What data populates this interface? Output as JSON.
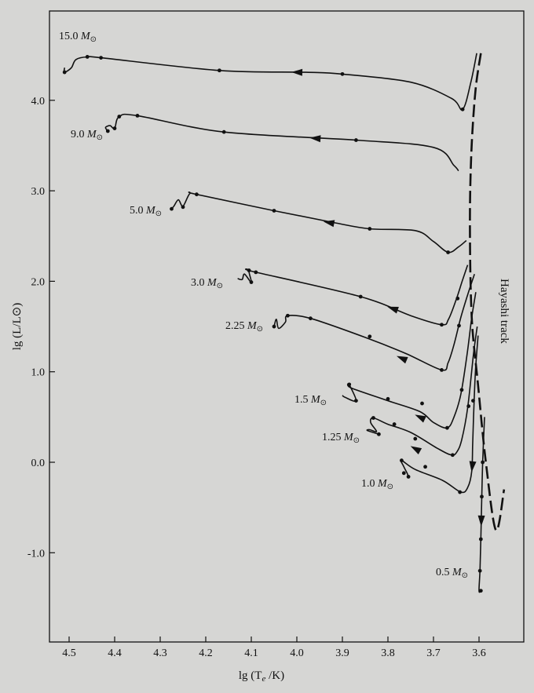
{
  "chart_data": {
    "type": "line",
    "xlabel": "lg (Tₑ /K)",
    "ylabel": "lg (L/L⊙)",
    "xlim": [
      4.55,
      3.52
    ],
    "ylim": [
      -2.0,
      4.75
    ],
    "x_ticks": [
      "4.5",
      "4.4",
      "4.3",
      "4.2",
      "4.1",
      "4.0",
      "3.9",
      "3.8",
      "3.7",
      "3.6"
    ],
    "y_ticks": [
      "4.0",
      "3.0",
      "2.0",
      "1.0",
      "0.0",
      "-1.0"
    ],
    "x_inverted": true,
    "hayashi_label": "Hayashi track",
    "hayashi": [
      [
        3.596,
        4.52
      ],
      [
        3.608,
        4.1
      ],
      [
        3.617,
        3.4
      ],
      [
        3.62,
        2.6
      ],
      [
        3.616,
        1.6
      ],
      [
        3.602,
        0.85
      ],
      [
        3.585,
        0.0
      ],
      [
        3.563,
        -0.75
      ],
      [
        3.545,
        -0.3
      ]
    ],
    "series": [
      {
        "name": "15.0",
        "points": [
          [
            3.605,
            4.52
          ],
          [
            3.618,
            4.2
          ],
          [
            3.636,
            3.9
          ],
          [
            3.66,
            4.02
          ],
          [
            3.75,
            4.2
          ],
          [
            3.9,
            4.29
          ],
          [
            3.98,
            4.31
          ],
          [
            4.17,
            4.33
          ],
          [
            4.43,
            4.47
          ],
          [
            4.46,
            4.48
          ],
          [
            4.485,
            4.45
          ],
          [
            4.495,
            4.36
          ],
          [
            4.51,
            4.31
          ],
          [
            4.51,
            4.36
          ]
        ],
        "dots": [
          [
            3.636,
            3.9
          ],
          [
            3.9,
            4.29
          ],
          [
            4.17,
            4.33
          ],
          [
            4.43,
            4.47
          ],
          [
            4.46,
            4.48
          ],
          [
            4.51,
            4.31
          ]
        ],
        "arrow": [
          4.0,
          4.31
        ]
      },
      {
        "name": "9.0",
        "points": [
          [
            3.645,
            3.22
          ],
          [
            3.655,
            3.28
          ],
          [
            3.7,
            3.48
          ],
          [
            3.87,
            3.56
          ],
          [
            4.16,
            3.65
          ],
          [
            4.35,
            3.83
          ],
          [
            4.39,
            3.82
          ],
          [
            4.4,
            3.69
          ],
          [
            4.41,
            3.72
          ],
          [
            4.42,
            3.7
          ],
          [
            4.415,
            3.66
          ]
        ],
        "dots": [
          [
            3.87,
            3.56
          ],
          [
            4.16,
            3.65
          ],
          [
            4.35,
            3.83
          ],
          [
            4.39,
            3.82
          ],
          [
            4.4,
            3.69
          ],
          [
            4.415,
            3.66
          ]
        ],
        "arrow": [
          3.96,
          3.58
        ]
      },
      {
        "name": "5.0",
        "points": [
          [
            3.628,
            2.45
          ],
          [
            3.645,
            2.38
          ],
          [
            3.668,
            2.32
          ],
          [
            3.7,
            2.44
          ],
          [
            3.74,
            2.56
          ],
          [
            3.84,
            2.58
          ],
          [
            3.92,
            2.65
          ],
          [
            4.05,
            2.78
          ],
          [
            4.22,
            2.96
          ],
          [
            4.235,
            2.97
          ],
          [
            4.25,
            2.83
          ],
          [
            4.26,
            2.9
          ],
          [
            4.27,
            2.83
          ],
          [
            4.275,
            2.8
          ]
        ],
        "dots": [
          [
            3.668,
            2.32
          ],
          [
            3.84,
            2.58
          ],
          [
            4.05,
            2.78
          ],
          [
            4.22,
            2.96
          ],
          [
            4.25,
            2.82
          ],
          [
            4.275,
            2.8
          ]
        ],
        "arrow": [
          3.93,
          2.65
        ]
      },
      {
        "name": "3.0",
        "points": [
          [
            3.625,
            2.18
          ],
          [
            3.637,
            2.0
          ],
          [
            3.65,
            1.8
          ],
          [
            3.667,
            1.58
          ],
          [
            3.682,
            1.52
          ],
          [
            3.75,
            1.62
          ],
          [
            3.86,
            1.83
          ],
          [
            4.09,
            2.1
          ],
          [
            4.105,
            2.12
          ],
          [
            4.1,
            1.99
          ],
          [
            4.115,
            2.08
          ],
          [
            4.12,
            2.02
          ],
          [
            4.13,
            2.03
          ]
        ],
        "dots": [
          [
            3.647,
            1.81
          ],
          [
            3.682,
            1.52
          ],
          [
            3.86,
            1.83
          ],
          [
            4.09,
            2.1
          ],
          [
            4.105,
            2.12
          ],
          [
            4.1,
            1.99
          ]
        ],
        "arrow": [
          3.79,
          1.7
        ]
      },
      {
        "name": "2.25",
        "points": [
          [
            3.61,
            2.08
          ],
          [
            3.625,
            1.85
          ],
          [
            3.64,
            1.6
          ],
          [
            3.655,
            1.3
          ],
          [
            3.668,
            1.1
          ],
          [
            3.682,
            1.02
          ],
          [
            3.76,
            1.2
          ],
          [
            3.85,
            1.38
          ],
          [
            3.97,
            1.59
          ],
          [
            4.02,
            1.62
          ],
          [
            4.025,
            1.55
          ],
          [
            4.04,
            1.48
          ],
          [
            4.045,
            1.58
          ],
          [
            4.05,
            1.5
          ]
        ],
        "dots": [
          [
            3.644,
            1.51
          ],
          [
            3.682,
            1.02
          ],
          [
            3.84,
            1.39
          ],
          [
            3.97,
            1.59
          ],
          [
            4.02,
            1.62
          ],
          [
            4.05,
            1.5
          ]
        ],
        "arrow": [
          3.77,
          1.15
        ]
      },
      {
        "name": "1.5",
        "points": [
          [
            3.607,
            1.88
          ],
          [
            3.616,
            1.6
          ],
          [
            3.626,
            1.2
          ],
          [
            3.64,
            0.75
          ],
          [
            3.655,
            0.5
          ],
          [
            3.67,
            0.38
          ],
          [
            3.7,
            0.44
          ],
          [
            3.73,
            0.56
          ],
          [
            3.8,
            0.68
          ],
          [
            3.88,
            0.82
          ],
          [
            3.885,
            0.86
          ],
          [
            3.87,
            0.68
          ],
          [
            3.895,
            0.72
          ],
          [
            3.9,
            0.74
          ]
        ],
        "dots": [
          [
            3.638,
            0.8
          ],
          [
            3.67,
            0.38
          ],
          [
            3.725,
            0.65
          ],
          [
            3.8,
            0.7
          ],
          [
            3.885,
            0.86
          ],
          [
            3.87,
            0.68
          ]
        ],
        "arrow": [
          3.73,
          0.5
        ]
      },
      {
        "name": "1.25",
        "points": [
          [
            3.604,
            1.5
          ],
          [
            3.612,
            1.2
          ],
          [
            3.625,
            0.6
          ],
          [
            3.638,
            0.25
          ],
          [
            3.648,
            0.12
          ],
          [
            3.66,
            0.08
          ],
          [
            3.69,
            0.15
          ],
          [
            3.75,
            0.33
          ],
          [
            3.8,
            0.42
          ],
          [
            3.832,
            0.49
          ],
          [
            3.838,
            0.44
          ],
          [
            3.825,
            0.34
          ],
          [
            3.84,
            0.36
          ],
          [
            3.845,
            0.35
          ],
          [
            3.82,
            0.31
          ]
        ],
        "dots": [
          [
            3.623,
            0.62
          ],
          [
            3.658,
            0.08
          ],
          [
            3.74,
            0.26
          ],
          [
            3.786,
            0.42
          ],
          [
            3.832,
            0.49
          ],
          [
            3.82,
            0.31
          ]
        ],
        "arrow": [
          3.74,
          0.15
        ]
      },
      {
        "name": "1.0",
        "points": [
          [
            3.602,
            1.4
          ],
          [
            3.608,
            1.0
          ],
          [
            3.612,
            0.5
          ],
          [
            3.614,
            0.2
          ],
          [
            3.616,
            -0.1
          ],
          [
            3.625,
            -0.28
          ],
          [
            3.64,
            -0.33
          ],
          [
            3.68,
            -0.2
          ],
          [
            3.74,
            -0.08
          ],
          [
            3.77,
            0.02
          ],
          [
            3.765,
            -0.05
          ],
          [
            3.758,
            -0.12
          ],
          [
            3.755,
            -0.16
          ]
        ],
        "dots": [
          [
            3.613,
            0.68
          ],
          [
            3.642,
            -0.33
          ],
          [
            3.718,
            -0.05
          ],
          [
            3.77,
            0.02
          ],
          [
            3.765,
            -0.12
          ],
          [
            3.755,
            -0.16
          ]
        ],
        "arrow": [
          3.615,
          -0.05
        ]
      },
      {
        "name": "0.5",
        "points": [
          [
            3.588,
            0.5
          ],
          [
            3.592,
            0.0
          ],
          [
            3.594,
            -0.38
          ],
          [
            3.596,
            -0.85
          ],
          [
            3.598,
            -1.2
          ],
          [
            3.6,
            -1.42
          ],
          [
            3.596,
            -1.42
          ]
        ],
        "dots": [
          [
            3.592,
            0.0
          ],
          [
            3.594,
            -0.38
          ],
          [
            3.596,
            -0.85
          ],
          [
            3.598,
            -1.2
          ],
          [
            3.596,
            -1.42
          ]
        ],
        "arrow": [
          3.595,
          -0.65
        ]
      }
    ]
  },
  "mass_unit": "M",
  "mass_sun": "⊙",
  "labels": {
    "xlabel_main": "lg (T",
    "xlabel_sub": "e",
    "xlabel_tail": " /K)",
    "ylabel": "lg (L/L⊙)"
  }
}
